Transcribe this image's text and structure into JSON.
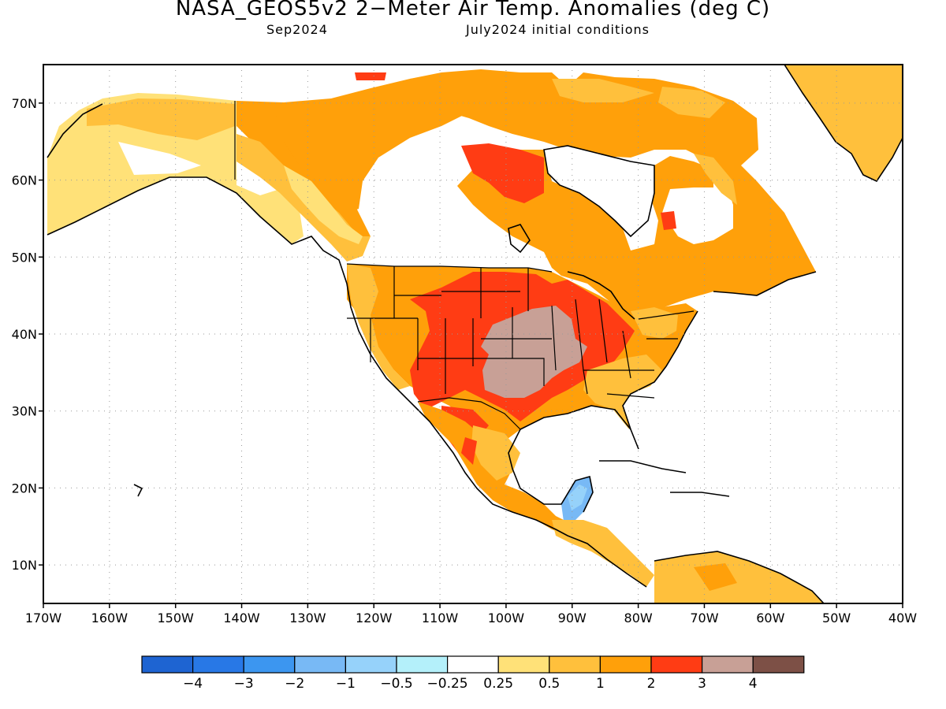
{
  "header": {
    "title": "NASA_GEOS5v2 2−Meter Air Temp. Anomalies (deg C)",
    "subtitle_left": "Sep2024",
    "subtitle_right": "July2024 initial conditions"
  },
  "map": {
    "lon_range": [
      -170,
      -40
    ],
    "lat_range": [
      5,
      75
    ],
    "lon_ticks": [
      "170W",
      "160W",
      "150W",
      "140W",
      "130W",
      "120W",
      "110W",
      "100W",
      "90W",
      "80W",
      "70W",
      "60W",
      "50W",
      "40W"
    ],
    "lat_ticks": [
      "10N",
      "20N",
      "30N",
      "40N",
      "50N",
      "60N",
      "70N"
    ],
    "grid": "dotted"
  },
  "colorbar": {
    "colors": [
      "#1e64d2",
      "#2878e6",
      "#3c96f0",
      "#78b9f5",
      "#96d2fa",
      "#b4f0fa",
      "#ffffff",
      "#ffe178",
      "#ffc03c",
      "#ffa00a",
      "#ff3c14",
      "#c8a096",
      "#7d5046"
    ],
    "labels": [
      "−4",
      "−3",
      "−2",
      "−1",
      "−0.5",
      "−0.25",
      "0.25",
      "0.5",
      "1",
      "2",
      "3",
      "4"
    ]
  }
}
